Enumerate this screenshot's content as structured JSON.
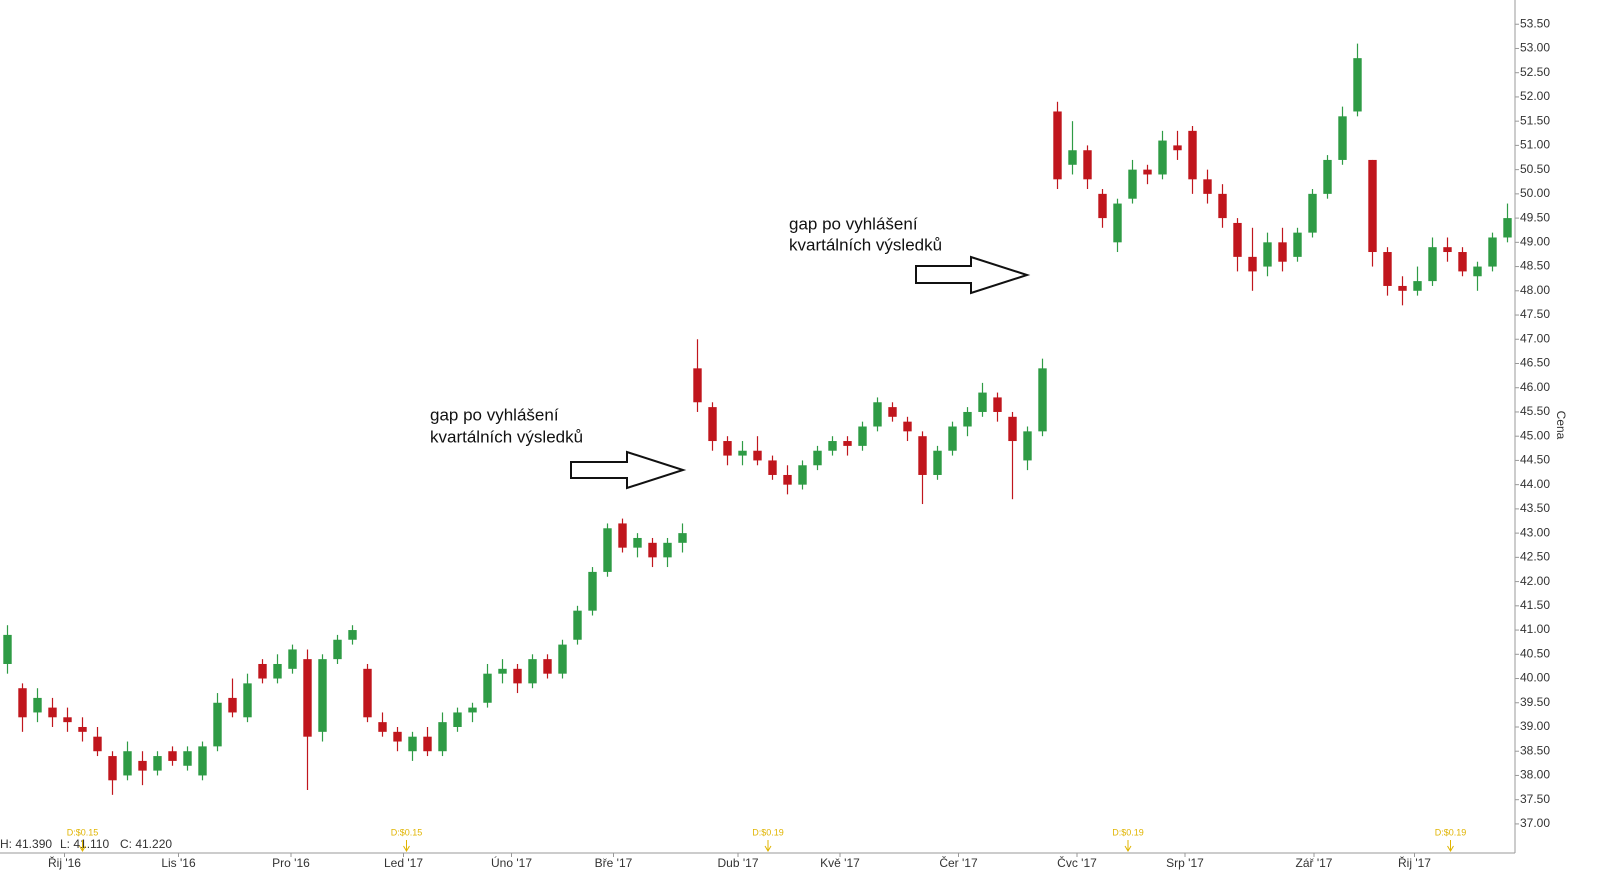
{
  "chart_data": {
    "type": "candlestick",
    "y_axis_label": "Cena",
    "status": [
      "H: 41.390",
      "L: 41.110",
      "C: 41.220"
    ],
    "annotations": [
      [
        "gap po vyhlášení",
        "kvartálních výsledků"
      ],
      [
        "gap po vyhlášení",
        "kvartálních výsledků"
      ]
    ],
    "dividends": [
      {
        "x": 5.5,
        "label": "D:$0.15"
      },
      {
        "x": 27.1,
        "label": "D:$0.15"
      },
      {
        "x": 51.2,
        "label": "D:$0.19"
      },
      {
        "x": 75.2,
        "label": "D:$0.19"
      },
      {
        "x": 96.7,
        "label": "D:$0.19"
      }
    ],
    "up_color": "#2e9b45",
    "down_color": "#c0161d",
    "xlim": [
      0,
      101
    ],
    "xticks": [
      {
        "value": 4.3,
        "label": "Řij '16"
      },
      {
        "value": 11.9,
        "label": "Lis '16"
      },
      {
        "value": 19.4,
        "label": "Pro '16"
      },
      {
        "value": 26.9,
        "label": "Led '17"
      },
      {
        "value": 34.1,
        "label": "Úno '17"
      },
      {
        "value": 40.9,
        "label": "Bře '17"
      },
      {
        "value": 49.2,
        "label": "Dub '17"
      },
      {
        "value": 56,
        "label": "Kvě '17"
      },
      {
        "value": 63.9,
        "label": "Čer '17"
      },
      {
        "value": 71.8,
        "label": "Čvc '17"
      },
      {
        "value": 79,
        "label": "Srp '17"
      },
      {
        "value": 87.6,
        "label": "Zář '17"
      },
      {
        "value": 94.3,
        "label": "Řij '17"
      }
    ],
    "ylim": [
      36.4,
      54.0
    ],
    "yticks": [
      {
        "value": 37,
        "label": "37.00"
      },
      {
        "value": 37.5,
        "label": "37.50"
      },
      {
        "value": 38,
        "label": "38.00"
      },
      {
        "value": 38.5,
        "label": "38.50"
      },
      {
        "value": 39,
        "label": "39.00"
      },
      {
        "value": 39.5,
        "label": "39.50"
      },
      {
        "value": 40,
        "label": "40.00"
      },
      {
        "value": 40.5,
        "label": "40.50"
      },
      {
        "value": 41,
        "label": "41.00"
      },
      {
        "value": 41.5,
        "label": "41.50"
      },
      {
        "value": 42,
        "label": "42.00"
      },
      {
        "value": 42.5,
        "label": "42.50"
      },
      {
        "value": 43,
        "label": "43.00"
      },
      {
        "value": 43.5,
        "label": "43.50"
      },
      {
        "value": 44,
        "label": "44.00"
      },
      {
        "value": 44.5,
        "label": "44.50"
      },
      {
        "value": 45,
        "label": "45.00"
      },
      {
        "value": 45.5,
        "label": "45.50"
      },
      {
        "value": 46,
        "label": "46.00"
      },
      {
        "value": 46.5,
        "label": "46.50"
      },
      {
        "value": 47,
        "label": "47.00"
      },
      {
        "value": 47.5,
        "label": "47.50"
      },
      {
        "value": 48,
        "label": "48.00"
      },
      {
        "value": 48.5,
        "label": "48.50"
      },
      {
        "value": 49,
        "label": "49.00"
      },
      {
        "value": 49.5,
        "label": "49.50"
      },
      {
        "value": 50,
        "label": "50.00"
      },
      {
        "value": 50.5,
        "label": "50.50"
      },
      {
        "value": 51,
        "label": "51.00"
      },
      {
        "value": 51.5,
        "label": "51.50"
      },
      {
        "value": 52,
        "label": "52.00"
      },
      {
        "value": 52.5,
        "label": "52.50"
      },
      {
        "value": 53,
        "label": "53.00"
      },
      {
        "value": 53.5,
        "label": "53.50"
      }
    ],
    "open": [
      40.3,
      39.8,
      39.3,
      39.4,
      39.2,
      39.0,
      38.8,
      38.4,
      38.0,
      38.3,
      38.1,
      38.5,
      38.2,
      38.0,
      38.6,
      39.6,
      39.2,
      40.3,
      40.0,
      40.2,
      40.4,
      38.9,
      40.4,
      40.8,
      40.2,
      39.1,
      38.9,
      38.5,
      38.8,
      38.5,
      39.0,
      39.3,
      39.5,
      40.1,
      40.2,
      39.9,
      40.4,
      40.1,
      40.8,
      41.4,
      42.2,
      43.2,
      42.7,
      42.8,
      42.5,
      42.8,
      46.4,
      45.6,
      44.9,
      44.6,
      44.7,
      44.5,
      44.2,
      44.0,
      44.4,
      44.7,
      44.9,
      44.8,
      45.2,
      45.6,
      45.3,
      45.0,
      44.2,
      44.7,
      45.2,
      45.5,
      45.8,
      45.4,
      44.5,
      45.1,
      51.7,
      50.6,
      50.9,
      50.0,
      49.0,
      49.9,
      50.5,
      50.4,
      51.0,
      51.3,
      50.3,
      50.0,
      49.4,
      48.7,
      48.5,
      49.0,
      48.7,
      49.2,
      50.0,
      50.7,
      51.7,
      50.7,
      48.8,
      48.1,
      48.0,
      48.2,
      48.9,
      48.8,
      48.3,
      48.5,
      49.1
    ],
    "high": [
      41.1,
      39.9,
      39.8,
      39.6,
      39.4,
      39.2,
      39.0,
      38.5,
      38.7,
      38.5,
      38.5,
      38.6,
      38.6,
      38.7,
      39.7,
      40.0,
      40.1,
      40.4,
      40.5,
      40.7,
      40.6,
      40.5,
      40.9,
      41.1,
      40.3,
      39.3,
      39.0,
      38.9,
      39.0,
      39.3,
      39.4,
      39.5,
      40.3,
      40.4,
      40.3,
      40.5,
      40.5,
      40.8,
      41.5,
      42.3,
      43.2,
      43.3,
      43.0,
      42.9,
      42.9,
      43.2,
      47.0,
      45.7,
      45.0,
      44.9,
      45.0,
      44.6,
      44.4,
      44.5,
      44.8,
      45.0,
      45.0,
      45.3,
      45.8,
      45.7,
      45.4,
      45.1,
      44.8,
      45.3,
      45.6,
      46.1,
      45.9,
      45.5,
      45.2,
      46.6,
      51.9,
      51.5,
      51.0,
      50.1,
      49.9,
      50.7,
      50.6,
      51.3,
      51.3,
      51.4,
      50.5,
      50.2,
      49.5,
      49.3,
      49.2,
      49.3,
      49.3,
      50.1,
      50.8,
      51.8,
      53.1,
      50.7,
      48.9,
      48.3,
      48.5,
      49.1,
      49.1,
      48.9,
      48.6,
      49.2,
      49.8
    ],
    "low": [
      40.1,
      38.9,
      39.1,
      39.0,
      38.9,
      38.7,
      38.4,
      37.6,
      37.9,
      37.8,
      38.0,
      38.2,
      38.1,
      37.9,
      38.5,
      39.2,
      39.1,
      39.9,
      39.9,
      40.1,
      37.7,
      38.7,
      40.3,
      40.7,
      39.1,
      38.8,
      38.5,
      38.3,
      38.4,
      38.4,
      38.9,
      39.1,
      39.4,
      39.9,
      39.7,
      39.8,
      40.0,
      40.0,
      40.7,
      41.3,
      42.1,
      42.6,
      42.5,
      42.3,
      42.3,
      42.6,
      45.5,
      44.7,
      44.4,
      44.4,
      44.4,
      44.1,
      43.8,
      43.9,
      44.3,
      44.6,
      44.6,
      44.7,
      45.1,
      45.3,
      44.9,
      43.6,
      44.1,
      44.6,
      45.0,
      45.4,
      45.3,
      43.7,
      44.3,
      45.0,
      50.1,
      50.4,
      50.1,
      49.3,
      48.8,
      49.8,
      50.2,
      50.3,
      50.7,
      50.0,
      49.8,
      49.3,
      48.4,
      48.0,
      48.3,
      48.4,
      48.6,
      49.1,
      49.9,
      50.6,
      51.6,
      48.5,
      47.9,
      47.7,
      47.9,
      48.1,
      48.6,
      48.3,
      48.0,
      48.4,
      49.0
    ],
    "close": [
      40.9,
      39.2,
      39.6,
      39.2,
      39.1,
      38.9,
      38.5,
      37.9,
      38.5,
      38.1,
      38.4,
      38.3,
      38.5,
      38.6,
      39.5,
      39.3,
      39.9,
      40.0,
      40.3,
      40.6,
      38.8,
      40.4,
      40.8,
      41.0,
      39.2,
      38.9,
      38.7,
      38.8,
      38.5,
      39.1,
      39.3,
      39.4,
      40.1,
      40.2,
      39.9,
      40.4,
      40.1,
      40.7,
      41.4,
      42.2,
      43.1,
      42.7,
      42.9,
      42.5,
      42.8,
      43.0,
      45.7,
      44.9,
      44.6,
      44.7,
      44.5,
      44.2,
      44.0,
      44.4,
      44.7,
      44.9,
      44.8,
      45.2,
      45.7,
      45.4,
      45.1,
      44.2,
      44.7,
      45.2,
      45.5,
      45.9,
      45.5,
      44.9,
      45.1,
      46.4,
      50.3,
      50.9,
      50.3,
      49.5,
      49.8,
      50.5,
      50.4,
      51.1,
      50.9,
      50.3,
      50.0,
      49.5,
      48.7,
      48.4,
      49.0,
      48.6,
      49.2,
      50.0,
      50.7,
      51.6,
      52.8,
      48.8,
      48.1,
      48.0,
      48.2,
      48.9,
      48.8,
      48.4,
      48.5,
      49.1,
      49.5
    ]
  }
}
